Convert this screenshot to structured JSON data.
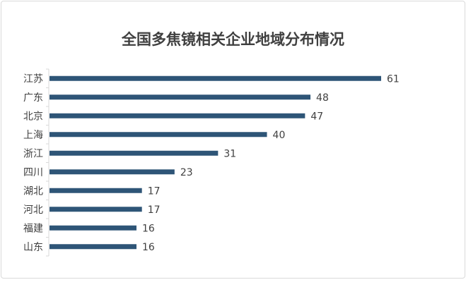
{
  "chart_data": {
    "type": "bar",
    "orientation": "horizontal",
    "title": "全国多焦镜相关企业地域分布情况",
    "categories": [
      "江苏",
      "广东",
      "北京",
      "上海",
      "浙江",
      "四川",
      "湖北",
      "河北",
      "福建",
      "山东"
    ],
    "values": [
      61,
      48,
      47,
      40,
      31,
      23,
      17,
      17,
      16,
      16
    ],
    "data_labels": [
      "61",
      "48",
      "47",
      "40",
      "31",
      "23",
      "17",
      "17",
      "16",
      "16"
    ],
    "xlabel": "",
    "ylabel": "",
    "xlim": [
      0,
      61
    ],
    "grid": false,
    "legend": "none",
    "bar_color": "#2e5577"
  }
}
